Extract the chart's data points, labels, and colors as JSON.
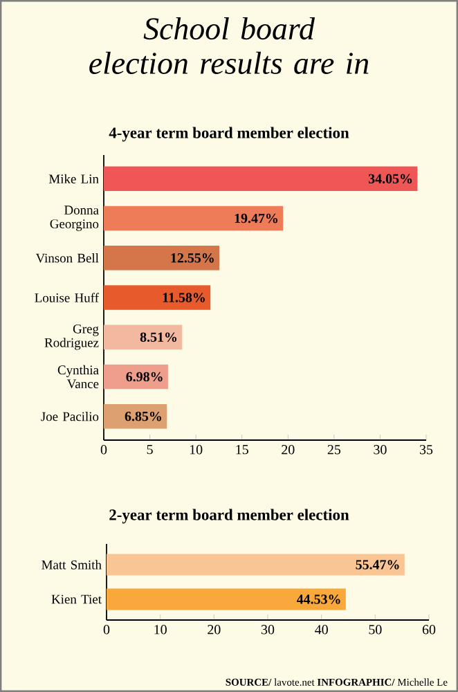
{
  "chart_data": [
    {
      "type": "bar",
      "orientation": "horizontal",
      "title": "School board election results are in",
      "subtitle": "4-year term board member election",
      "categories": [
        "Mike Lin",
        "Donna Georgino",
        "Vinson Bell",
        "Louise Huff",
        "Greg Rodriguez",
        "Cynthia Vance",
        "Joe Pacilio"
      ],
      "values": [
        34.05,
        19.47,
        12.55,
        11.58,
        8.51,
        6.98,
        6.85
      ],
      "value_labels": [
        "34.05%",
        "19.47%",
        "12.55%",
        "11.58%",
        "8.51%",
        "6.98%",
        "6.85%"
      ],
      "colors": [
        "#ef5756",
        "#ef7c58",
        "#d4764a",
        "#e65a2c",
        "#f2b8a0",
        "#f09e8c",
        "#dda070"
      ],
      "xlim": [
        0,
        35
      ],
      "xticks": [
        0,
        5,
        10,
        15,
        20,
        25,
        30,
        35
      ]
    },
    {
      "type": "bar",
      "orientation": "horizontal",
      "title": "2-year term board member election",
      "categories": [
        "Matt Smith",
        "Kien Tiet"
      ],
      "values": [
        55.47,
        44.53
      ],
      "value_labels": [
        "55.47%",
        "44.53%"
      ],
      "colors": [
        "#f9c594",
        "#f9a93c"
      ],
      "xlim": [
        0,
        60
      ],
      "xticks": [
        0,
        10,
        20,
        30,
        40,
        50,
        60
      ],
      "annotations": [
        "**SOURCE/** lavote.net **INFOGRAPHIC/** Michelle Le"
      ]
    }
  ]
}
